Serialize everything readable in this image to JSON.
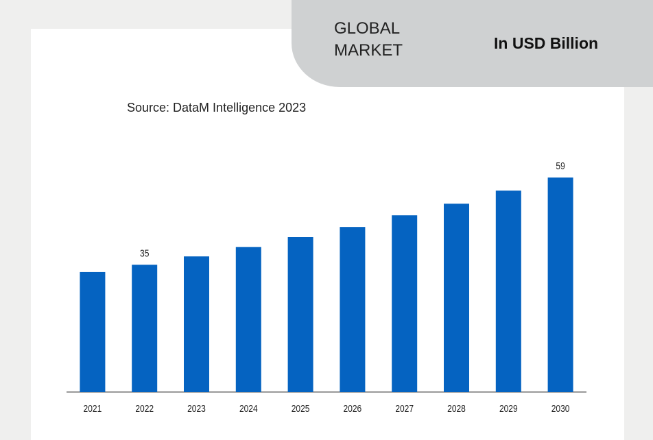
{
  "header": {
    "label": "GLOBAL MARKET",
    "unit": "In USD Billion"
  },
  "chart_data": {
    "type": "bar",
    "subtitle": "Source: DataM Intelligence 2023",
    "categories": [
      "2021",
      "2022",
      "2023",
      "2024",
      "2025",
      "2026",
      "2027",
      "2028",
      "2029",
      "2030"
    ],
    "values": [
      33,
      35,
      37.3,
      39.9,
      42.6,
      45.4,
      48.6,
      51.8,
      55.4,
      59
    ],
    "value_labels": [
      null,
      "35",
      null,
      null,
      null,
      null,
      null,
      null,
      null,
      "59"
    ],
    "color": "#0563c1"
  }
}
